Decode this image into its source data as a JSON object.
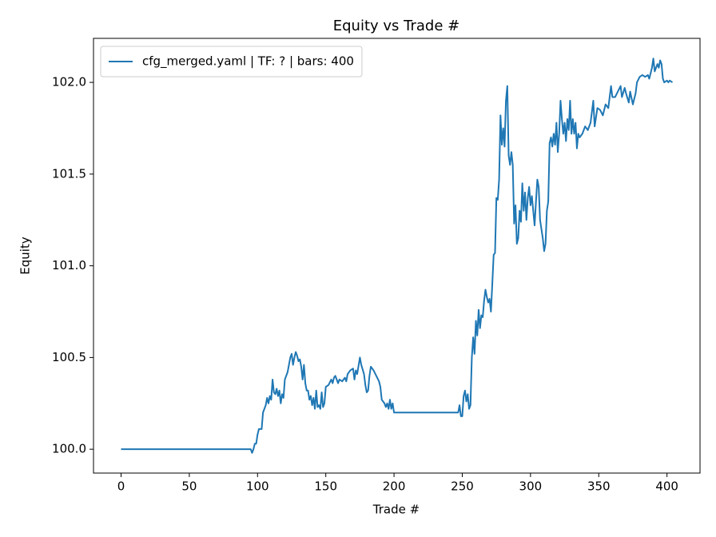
{
  "chart_data": {
    "type": "line",
    "title": "Equity vs Trade #",
    "x_label": "Trade #",
    "y_label": "Equity",
    "legend": "upper left",
    "xlim": [
      -20.2,
      424.2
    ],
    "ylim": [
      99.87,
      102.24
    ],
    "xticks": [
      0,
      50,
      100,
      150,
      200,
      250,
      300,
      350,
      400
    ],
    "yticks": [
      {
        "value": 100.0,
        "label": "100.0"
      },
      {
        "value": 100.5,
        "label": "100.5"
      },
      {
        "value": 101.0,
        "label": "101.0"
      },
      {
        "value": 101.5,
        "label": "101.5"
      },
      {
        "value": 102.0,
        "label": "102.0"
      }
    ],
    "x": [
      0,
      95,
      96,
      97,
      98,
      99,
      100,
      101,
      103,
      104,
      106,
      107,
      108,
      109,
      110,
      111,
      112,
      113,
      114,
      115,
      116,
      117,
      118,
      119,
      120,
      122,
      124,
      125,
      126,
      127,
      128,
      129,
      130,
      131,
      132,
      133,
      134,
      135,
      136,
      137,
      138,
      139,
      140,
      141,
      142,
      143,
      144,
      145,
      146,
      147,
      148,
      149,
      150,
      152,
      154,
      155,
      156,
      157,
      158,
      159,
      160,
      162,
      164,
      165,
      166,
      168,
      170,
      171,
      172,
      173,
      175,
      176,
      178,
      179,
      180,
      181,
      182,
      183,
      185,
      187,
      189,
      190,
      191,
      193,
      194,
      195,
      196,
      197,
      198,
      199,
      200,
      247,
      248,
      249,
      250,
      251,
      252,
      253,
      254,
      255,
      256,
      257,
      258,
      259,
      260,
      261,
      262,
      263,
      264,
      265,
      266,
      267,
      268,
      269,
      270,
      271,
      272,
      273,
      274,
      275,
      276,
      277,
      278,
      279,
      280,
      281,
      282,
      283,
      284,
      285,
      286,
      287,
      288,
      289,
      290,
      291,
      292,
      293,
      294,
      295,
      296,
      297,
      298,
      299,
      300,
      301,
      302,
      303,
      304,
      305,
      306,
      307,
      308,
      309,
      310,
      311,
      312,
      313,
      314,
      315,
      316,
      317,
      318,
      319,
      320,
      321,
      322,
      323,
      324,
      325,
      326,
      327,
      328,
      329,
      330,
      331,
      332,
      333,
      334,
      335,
      336,
      338,
      340,
      342,
      344,
      346,
      347,
      349,
      351,
      353,
      355,
      357,
      359,
      360,
      362,
      364,
      366,
      367,
      369,
      370,
      372,
      373,
      375,
      377,
      378,
      380,
      382,
      384,
      386,
      387,
      389,
      390,
      391,
      393,
      394,
      395,
      396,
      397,
      398,
      400,
      401,
      402,
      404
    ],
    "series": [
      {
        "name": "cfg_merged.yaml | TF: ? | bars: 400",
        "color": "#1f77b4",
        "values": [
          100.0,
          100.0,
          99.98,
          100.0,
          100.03,
          100.03,
          100.08,
          100.11,
          100.11,
          100.2,
          100.24,
          100.28,
          100.25,
          100.29,
          100.27,
          100.38,
          100.31,
          100.3,
          100.33,
          100.29,
          100.32,
          100.25,
          100.3,
          100.28,
          100.38,
          100.42,
          100.5,
          100.52,
          100.46,
          100.5,
          100.53,
          100.51,
          100.48,
          100.49,
          100.45,
          100.38,
          100.46,
          100.36,
          100.32,
          100.32,
          100.27,
          100.29,
          100.24,
          100.28,
          100.22,
          100.32,
          100.23,
          100.24,
          100.22,
          100.31,
          100.23,
          100.25,
          100.34,
          100.35,
          100.38,
          100.36,
          100.39,
          100.4,
          100.38,
          100.36,
          100.38,
          100.37,
          100.39,
          100.37,
          100.41,
          100.43,
          100.44,
          100.38,
          100.43,
          100.41,
          100.5,
          100.46,
          100.41,
          100.35,
          100.31,
          100.32,
          100.4,
          100.45,
          100.43,
          100.4,
          100.37,
          100.34,
          100.27,
          100.25,
          100.23,
          100.25,
          100.22,
          100.27,
          100.22,
          100.25,
          100.2,
          100.2,
          100.24,
          100.18,
          100.18,
          100.29,
          100.32,
          100.26,
          100.3,
          100.22,
          100.24,
          100.5,
          100.61,
          100.52,
          100.7,
          100.62,
          100.76,
          100.66,
          100.73,
          100.72,
          100.81,
          100.87,
          100.83,
          100.8,
          100.82,
          100.75,
          100.9,
          101.06,
          101.07,
          101.37,
          101.36,
          101.47,
          101.82,
          101.66,
          101.75,
          101.65,
          101.9,
          101.98,
          101.6,
          101.55,
          101.62,
          101.55,
          101.23,
          101.33,
          101.12,
          101.15,
          101.3,
          101.24,
          101.45,
          101.3,
          101.4,
          101.25,
          101.37,
          101.43,
          101.33,
          101.38,
          101.3,
          101.22,
          101.35,
          101.47,
          101.43,
          101.25,
          101.2,
          101.15,
          101.08,
          101.12,
          101.3,
          101.35,
          101.67,
          101.7,
          101.65,
          101.72,
          101.66,
          101.78,
          101.62,
          101.72,
          101.9,
          101.8,
          101.72,
          101.78,
          101.68,
          101.8,
          101.74,
          101.9,
          101.72,
          101.8,
          101.72,
          101.78,
          101.64,
          101.72,
          101.7,
          101.72,
          101.76,
          101.74,
          101.78,
          101.9,
          101.76,
          101.86,
          101.85,
          101.82,
          101.88,
          101.86,
          101.98,
          101.92,
          101.92,
          101.95,
          101.98,
          101.92,
          101.97,
          101.94,
          101.89,
          101.95,
          101.88,
          101.94,
          102.0,
          102.03,
          102.04,
          102.03,
          102.04,
          102.02,
          102.08,
          102.13,
          102.06,
          102.1,
          102.08,
          102.12,
          102.1,
          102.02,
          102.0,
          102.01,
          102.0,
          102.01,
          102.0
        ]
      }
    ]
  }
}
